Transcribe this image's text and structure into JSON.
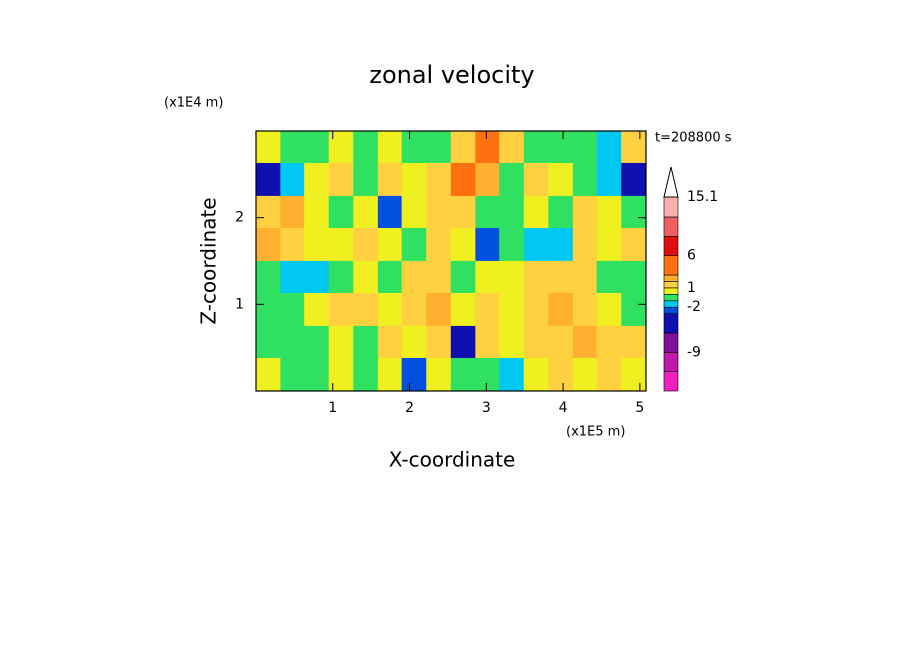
{
  "chart_data": {
    "type": "heatmap",
    "title": "zonal velocity",
    "x_label": "X-coordinate",
    "y_label": "Z-coordinate",
    "x_unit": "(x1E5 m)",
    "y_unit": "(x1E4 m)",
    "time_label": "t=208800 s",
    "xlim": [
      0,
      5.08
    ],
    "ylim": [
      0,
      3
    ],
    "xticks": [
      1,
      2,
      3,
      4,
      5
    ],
    "yticks": [
      1,
      2
    ],
    "x": [
      0.16,
      0.48,
      0.79,
      1.11,
      1.43,
      1.75,
      2.06,
      2.38,
      2.7,
      3.02,
      3.33,
      3.65,
      3.97,
      4.29,
      4.6,
      4.92
    ],
    "y": [
      2.81,
      2.44,
      2.06,
      1.69,
      1.31,
      0.94,
      0.56,
      0.19
    ],
    "values": [
      [
        0.5,
        -0.5,
        -0.5,
        0.5,
        -0.5,
        0.5,
        -0.5,
        -0.5,
        1.5,
        3,
        1,
        -0.5,
        -0.5,
        -0.5,
        -1.5,
        1.5
      ],
      [
        -4,
        -1.5,
        0.5,
        1.5,
        -0.5,
        1.5,
        0.5,
        1.5,
        4,
        2,
        -0.5,
        1.5,
        0.5,
        -0.5,
        -1.5,
        -5
      ],
      [
        1.5,
        2,
        0.5,
        -0.5,
        0.5,
        -3,
        0.5,
        1,
        1.5,
        -0.5,
        -0.5,
        0.5,
        -0.5,
        1.5,
        0.5,
        -0.5
      ],
      [
        2,
        1.5,
        0.5,
        0.5,
        1,
        0.5,
        -0.5,
        1.5,
        0.5,
        -3,
        -0.5,
        -2,
        -1.5,
        1.5,
        0.5,
        1.5
      ],
      [
        -0.5,
        -1.5,
        -1.5,
        -0.5,
        0.5,
        -0.5,
        1,
        1.5,
        -0.5,
        0.5,
        0.5,
        1,
        1.5,
        1.5,
        -0.5,
        -0.5
      ],
      [
        -0.5,
        -0.5,
        0.5,
        1.5,
        1,
        0.5,
        1.5,
        2,
        0.5,
        1,
        0.5,
        1.5,
        2,
        1,
        0.5,
        -0.5
      ],
      [
        -0.5,
        -0.5,
        -0.5,
        0.5,
        -0.5,
        1,
        0.5,
        1.5,
        -4,
        1,
        0.5,
        1,
        1.5,
        2,
        1.5,
        1
      ],
      [
        0.5,
        -0.5,
        -0.5,
        0.5,
        -0.5,
        0.5,
        -3,
        0.5,
        -0.5,
        -0.5,
        -2,
        0.5,
        1,
        0.5,
        1,
        0.5
      ]
    ],
    "levels": [
      -15,
      -12,
      -9,
      -6,
      -3,
      -2,
      -1,
      0,
      1,
      2,
      3,
      6,
      9,
      12,
      15.1
    ],
    "colors": [
      "#f020c0",
      "#c018a8",
      "#80109a",
      "#1010b0",
      "#0050e0",
      "#00c8f0",
      "#30e060",
      "#f0f020",
      "#ffd040",
      "#ffb030",
      "#ff7010",
      "#e01010",
      "#f06060",
      "#f8b0b0"
    ],
    "colorbar_ticks": [
      15.1,
      6,
      1,
      -2,
      -9
    ]
  }
}
